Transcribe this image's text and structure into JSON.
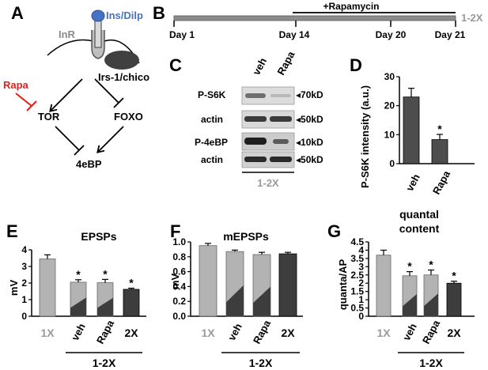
{
  "panels": {
    "A": {
      "letter": "A",
      "labels": {
        "ligand": "Ins/Dilp",
        "receptor": "InR",
        "adaptor": "Irs-1/chico",
        "drug": "Rapa",
        "tor": "TOR",
        "foxo": "FOXO",
        "target": "4eBP"
      },
      "colors": {
        "ligand": "#4472c4",
        "drug": "#e0201b",
        "receptor": "#8c8c8c"
      }
    },
    "B": {
      "letter": "B",
      "treatment_label": "+Rapamycin",
      "genotype": "1-2X",
      "days": [
        "Day 1",
        "Day 14",
        "Day 20",
        "Day 21"
      ]
    },
    "C": {
      "letter": "C",
      "lanes": [
        "veh",
        "Rapa"
      ],
      "rows": [
        "P-S6K",
        "actin",
        "P-4eBP",
        "actin"
      ],
      "sizes": [
        "◂70kD",
        "◂50kD",
        "◂10kD",
        "◂50kD"
      ],
      "genotype": "1-2X"
    },
    "D": {
      "letter": "D",
      "ylabel": "P-S6K intensity (a.u.)",
      "yticks": [
        "0",
        "10",
        "20",
        "30"
      ],
      "categories": [
        "veh",
        "Rapa"
      ],
      "star": "*"
    },
    "E": {
      "letter": "E",
      "title": "EPSPs",
      "ylabel": "mV",
      "yticks": [
        "0",
        "1",
        "2",
        "3",
        "4"
      ],
      "categories": [
        "1X",
        "veh",
        "Rapa",
        "2X"
      ],
      "group_label": "1-2X",
      "star": "*"
    },
    "F": {
      "letter": "F",
      "title": "mEPSPs",
      "ylabel": "mV",
      "yticks": [
        "0.0",
        "0.2",
        "0.4",
        "0.6",
        "0.8",
        "1.0"
      ],
      "categories": [
        "1X",
        "veh",
        "Rapa",
        "2X"
      ],
      "group_label": "1-2X"
    },
    "G": {
      "letter": "G",
      "title_line1": "quantal",
      "title_line2": "content",
      "ylabel": "quanta/AP",
      "yticks": [
        "0",
        "0.5",
        "1",
        "1.5",
        "2",
        "2.5",
        "3",
        "3.5",
        "4",
        "4.5"
      ],
      "categories": [
        "1X",
        "veh",
        "Rapa",
        "2X"
      ],
      "group_label": "1-2X",
      "star": "*"
    }
  },
  "chart_data": [
    {
      "panel": "D",
      "type": "bar",
      "categories": [
        "veh",
        "Rapa"
      ],
      "values": [
        23,
        8.3
      ],
      "errors": [
        3,
        1.8
      ],
      "significant": [
        false,
        true
      ],
      "ylabel": "P-S6K intensity (a.u.)",
      "ylim": [
        0,
        30
      ],
      "colors": [
        "#4d4d4d",
        "#4d4d4d"
      ]
    },
    {
      "panel": "E",
      "type": "bar",
      "title": "EPSPs",
      "categories": [
        "1X",
        "veh",
        "Rapa",
        "2X"
      ],
      "values": [
        3.45,
        2.05,
        2.02,
        1.62
      ],
      "errors": [
        0.25,
        0.15,
        0.2,
        0.07
      ],
      "significant": [
        false,
        true,
        true,
        true
      ],
      "ylabel": "mV",
      "ylim": [
        0,
        4
      ]
    },
    {
      "panel": "F",
      "type": "bar",
      "title": "mEPSPs",
      "categories": [
        "1X",
        "veh",
        "Rapa",
        "2X"
      ],
      "values": [
        0.95,
        0.87,
        0.83,
        0.84
      ],
      "errors": [
        0.03,
        0.02,
        0.03,
        0.02
      ],
      "significant": [
        false,
        false,
        false,
        false
      ],
      "ylabel": "mV",
      "ylim": [
        0,
        1.0
      ]
    },
    {
      "panel": "G",
      "type": "bar",
      "title": "quantal content",
      "categories": [
        "1X",
        "veh",
        "Rapa",
        "2X"
      ],
      "values": [
        3.7,
        2.45,
        2.5,
        2.0
      ],
      "errors": [
        0.3,
        0.25,
        0.3,
        0.12
      ],
      "significant": [
        false,
        true,
        true,
        true
      ],
      "ylabel": "quanta/AP",
      "ylim": [
        0,
        4.5
      ]
    }
  ],
  "bar_styles": {
    "control_fill": "#b3b3b3",
    "mixed_light": "#b3b3b3",
    "mixed_dark": "#3d3d3d",
    "dark_fill": "#3d3d3d",
    "grey_label": "#9a9a9a"
  }
}
